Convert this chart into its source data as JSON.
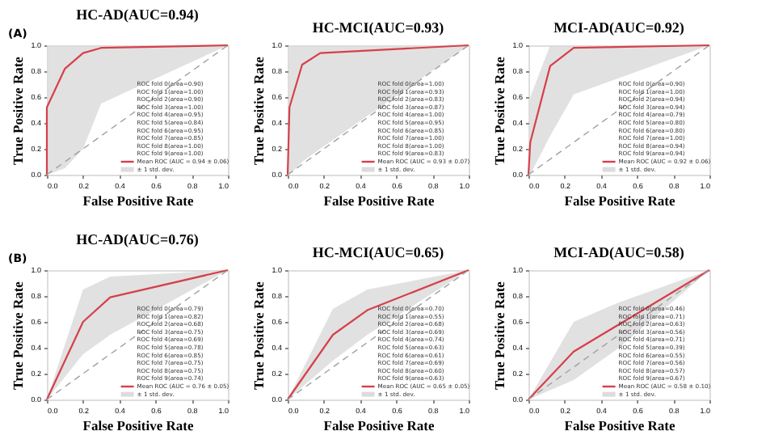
{
  "chart_data": [
    {
      "type": "line",
      "title": "HC-AD(AUC=0.94)",
      "xlabel": "False Positive Rate",
      "ylabel": "True Positive Rate",
      "xlim": [
        0,
        1
      ],
      "ylim": [
        0,
        1
      ],
      "xticks": [
        {
          "value": 0,
          "label": "0.0"
        },
        {
          "value": 0.2,
          "label": "0.2"
        },
        {
          "value": 0.4,
          "label": "0.4"
        },
        {
          "value": 0.6,
          "label": "0.6"
        },
        {
          "value": 0.8,
          "label": "0.8"
        },
        {
          "value": 1,
          "label": "1.0"
        }
      ],
      "yticks": [
        {
          "value": 0,
          "label": "0.0"
        },
        {
          "value": 0.2,
          "label": "0.2"
        },
        {
          "value": 0.4,
          "label": "0.4"
        },
        {
          "value": 0.6,
          "label": "0.6"
        },
        {
          "value": 0.8,
          "label": "0.8"
        },
        {
          "value": 1,
          "label": "1.0"
        }
      ],
      "series": [
        {
          "name": "Mean ROC (AUC = 0.94 ± 0.06)",
          "type": "line",
          "color": "#d6404a",
          "x": [
            0,
            0,
            0.1,
            0.2,
            0.3,
            1
          ],
          "values": [
            0,
            0.52,
            0.82,
            0.94,
            0.98,
            1
          ],
          "lower": [
            0,
            0,
            0.05,
            0.2,
            0.55,
            1
          ],
          "upper": [
            0,
            1,
            1,
            1,
            1,
            1
          ]
        },
        {
          "type": "line",
          "color": "#a0a0a0",
          "line_style": "dashed",
          "x": [
            0,
            1
          ],
          "values": [
            0,
            1
          ]
        }
      ],
      "annotations": [
        "(A)",
        "ROC fold 0(area=0.90)",
        "ROC fold 1(area=1.00)",
        "ROC fold 2(area=0.90)",
        "ROC fold 3(area=1.00)",
        "ROC fold 4(area=0.95)",
        "ROC fold 5(area=0.84)",
        "ROC fold 6(area=0.95)",
        "ROC fold 7(area=0.85)",
        "ROC fold 8(area=1.00)",
        "ROC fold 9(area=1.00)",
        "± 1 std. dev."
      ]
    },
    {
      "type": "line",
      "title": "HC-MCI(AUC=0.93)",
      "xlabel": "False Positive Rate",
      "ylabel": "True Positive Rate",
      "xlim": [
        0,
        1
      ],
      "ylim": [
        0,
        1
      ],
      "xticks": [
        {
          "value": 0,
          "label": "0.0"
        },
        {
          "value": 0.2,
          "label": "0.2"
        },
        {
          "value": 0.4,
          "label": "0.4"
        },
        {
          "value": 0.6,
          "label": "0.6"
        },
        {
          "value": 0.8,
          "label": "0.8"
        },
        {
          "value": 1,
          "label": "1.0"
        }
      ],
      "yticks": [
        {
          "value": 0,
          "label": "0.0"
        },
        {
          "value": 0.2,
          "label": "0.2"
        },
        {
          "value": 0.4,
          "label": "0.4"
        },
        {
          "value": 0.6,
          "label": "0.6"
        },
        {
          "value": 0.8,
          "label": "0.8"
        },
        {
          "value": 1,
          "label": "1.0"
        }
      ],
      "series": [
        {
          "name": "Mean ROC (AUC = 0.93 ± 0.07)",
          "type": "line",
          "color": "#d6404a",
          "x": [
            0,
            0.01,
            0.08,
            0.18,
            1
          ],
          "values": [
            0,
            0.52,
            0.85,
            0.94,
            1
          ],
          "lower": [
            0,
            0,
            0.1,
            0.2,
            1
          ],
          "upper": [
            0,
            1,
            1,
            1,
            1
          ]
        },
        {
          "type": "line",
          "color": "#a0a0a0",
          "line_style": "dashed",
          "x": [
            0,
            1
          ],
          "values": [
            0,
            1
          ]
        }
      ],
      "annotations": [
        "ROC fold 0(area=1.00)",
        "ROC fold 1(area=0.93)",
        "ROC fold 2(area=0.83)",
        "ROC fold 3(area=0.87)",
        "ROC fold 4(area=1.00)",
        "ROC fold 5(area=0.95)",
        "ROC fold 6(area=0.85)",
        "ROC fold 7(area=1.00)",
        "ROC fold 8(area=1.00)",
        "ROC fold 9(area=0.83)",
        "± 1 std. dev."
      ]
    },
    {
      "type": "line",
      "title": "MCI-AD(AUC=0.92)",
      "xlabel": "False Positive Rate",
      "ylabel": "True Positive Rate",
      "xlim": [
        0,
        1
      ],
      "ylim": [
        0,
        1
      ],
      "xticks": [
        {
          "value": 0,
          "label": "0.0"
        },
        {
          "value": 0.2,
          "label": "0.2"
        },
        {
          "value": 0.4,
          "label": "0.4"
        },
        {
          "value": 0.6,
          "label": "0.6"
        },
        {
          "value": 0.8,
          "label": "0.8"
        },
        {
          "value": 1,
          "label": "1.0"
        }
      ],
      "yticks": [
        {
          "value": 0,
          "label": "0.0"
        },
        {
          "value": 0.2,
          "label": "0.2"
        },
        {
          "value": 0.4,
          "label": "0.4"
        },
        {
          "value": 0.6,
          "label": "0.6"
        },
        {
          "value": 0.8,
          "label": "0.8"
        },
        {
          "value": 1,
          "label": "1.0"
        }
      ],
      "series": [
        {
          "name": "Mean ROC (AUC = 0.92 ± 0.06)",
          "type": "line",
          "color": "#d6404a",
          "x": [
            0,
            0.01,
            0.12,
            0.25,
            1
          ],
          "values": [
            0,
            0.25,
            0.84,
            0.98,
            1
          ],
          "lower": [
            0,
            0,
            0.3,
            0.62,
            1
          ],
          "upper": [
            0,
            0.6,
            1,
            1,
            1
          ]
        },
        {
          "type": "line",
          "color": "#a0a0a0",
          "line_style": "dashed",
          "x": [
            0,
            1
          ],
          "values": [
            0,
            1
          ]
        }
      ],
      "annotations": [
        "ROC fold 0(area=0.90)",
        "ROC fold 1(area=1.00)",
        "ROC fold 2(area=0.94)",
        "ROC fold 3(area=0.94)",
        "ROC fold 4(area=0.79)",
        "ROC fold 5(area=0.80)",
        "ROC fold 6(area=0.80)",
        "ROC fold 7(area=1.00)",
        "ROC fold 8(area=0.94)",
        "ROC fold 9(area=0.94)",
        "± 1 std. dev."
      ]
    },
    {
      "type": "line",
      "title": "HC-AD(AUC=0.76)",
      "xlabel": "False Positive Rate",
      "ylabel": "True Positive Rate",
      "xlim": [
        0,
        1
      ],
      "ylim": [
        0,
        1
      ],
      "xticks": [
        {
          "value": 0,
          "label": "0.0"
        },
        {
          "value": 0.2,
          "label": "0.2"
        },
        {
          "value": 0.4,
          "label": "0.4"
        },
        {
          "value": 0.6,
          "label": "0.6"
        },
        {
          "value": 0.8,
          "label": "0.8"
        },
        {
          "value": 1,
          "label": "1.0"
        }
      ],
      "yticks": [
        {
          "value": 0,
          "label": "0.0"
        },
        {
          "value": 0.2,
          "label": "0.2"
        },
        {
          "value": 0.4,
          "label": "0.4"
        },
        {
          "value": 0.6,
          "label": "0.6"
        },
        {
          "value": 0.8,
          "label": "0.8"
        },
        {
          "value": 1,
          "label": "1.0"
        }
      ],
      "series": [
        {
          "name": "Mean ROC (AUC = 0.76 ± 0.05)",
          "type": "line",
          "color": "#d6404a",
          "x": [
            0,
            0.2,
            0.35,
            1
          ],
          "values": [
            0,
            0.6,
            0.79,
            1
          ],
          "lower": [
            0,
            0.35,
            0.5,
            1
          ],
          "upper": [
            0,
            0.85,
            0.95,
            1
          ]
        },
        {
          "type": "line",
          "color": "#a0a0a0",
          "line_style": "dashed",
          "x": [
            0,
            1
          ],
          "values": [
            0,
            1
          ]
        }
      ],
      "annotations": [
        "(B)",
        "ROC fold 0(area=0.79)",
        "ROC fold 1(area=0.82)",
        "ROC fold 2(area=0.68)",
        "ROC fold 3(area=0.75)",
        "ROC fold 4(area=0.69)",
        "ROC fold 5(area=0.78)",
        "ROC fold 6(area=0.85)",
        "ROC fold 7(area=0.75)",
        "ROC fold 8(area=0.75)",
        "ROC fold 9(area=0.74)",
        "± 1 std. dev."
      ]
    },
    {
      "type": "line",
      "title": "HC-MCI(AUC=0.65)",
      "xlabel": "False Positive Rate",
      "ylabel": "True Positive Rate",
      "xlim": [
        0,
        1
      ],
      "ylim": [
        0,
        1
      ],
      "xticks": [
        {
          "value": 0,
          "label": "0.0"
        },
        {
          "value": 0.2,
          "label": "0.2"
        },
        {
          "value": 0.4,
          "label": "0.4"
        },
        {
          "value": 0.6,
          "label": "0.6"
        },
        {
          "value": 0.8,
          "label": "0.8"
        },
        {
          "value": 1,
          "label": "1.0"
        }
      ],
      "yticks": [
        {
          "value": 0,
          "label": "0.0"
        },
        {
          "value": 0.2,
          "label": "0.2"
        },
        {
          "value": 0.4,
          "label": "0.4"
        },
        {
          "value": 0.6,
          "label": "0.6"
        },
        {
          "value": 0.8,
          "label": "0.8"
        },
        {
          "value": 1,
          "label": "1.0"
        }
      ],
      "series": [
        {
          "name": "Mean ROC (AUC = 0.65 ± 0.05)",
          "type": "line",
          "color": "#d6404a",
          "x": [
            0,
            0.25,
            0.44,
            1
          ],
          "values": [
            0,
            0.5,
            0.69,
            1
          ],
          "lower": [
            0,
            0.3,
            0.5,
            1
          ],
          "upper": [
            0,
            0.7,
            0.85,
            1
          ]
        },
        {
          "type": "line",
          "color": "#a0a0a0",
          "line_style": "dashed",
          "x": [
            0,
            1
          ],
          "values": [
            0,
            1
          ]
        }
      ],
      "annotations": [
        "ROC fold 0(area=0.70)",
        "ROC fold 1(area=0.55)",
        "ROC fold 2(area=0.68)",
        "ROC fold 3(area=0.69)",
        "ROC fold 4(area=0.74)",
        "ROC fold 5(area=0.63)",
        "ROC fold 6(area=0.61)",
        "ROC fold 7(area=0.69)",
        "ROC fold 8(area=0.60)",
        "ROC fold 9(area=0.63)",
        "± 1 std. dev."
      ]
    },
    {
      "type": "line",
      "title": "MCI-AD(AUC=0.58)",
      "xlabel": "False Positive Rate",
      "ylabel": "True Positive Rate",
      "xlim": [
        0,
        1
      ],
      "ylim": [
        0,
        1
      ],
      "xticks": [
        {
          "value": 0,
          "label": "0.0"
        },
        {
          "value": 0.2,
          "label": "0.2"
        },
        {
          "value": 0.4,
          "label": "0.4"
        },
        {
          "value": 0.6,
          "label": "0.6"
        },
        {
          "value": 0.8,
          "label": "0.8"
        },
        {
          "value": 1,
          "label": "1.0"
        }
      ],
      "yticks": [
        {
          "value": 0,
          "label": "0.0"
        },
        {
          "value": 0.2,
          "label": "0.2"
        },
        {
          "value": 0.4,
          "label": "0.4"
        },
        {
          "value": 0.6,
          "label": "0.6"
        },
        {
          "value": 0.8,
          "label": "0.8"
        },
        {
          "value": 1,
          "label": "1.0"
        }
      ],
      "series": [
        {
          "name": "Mean ROC (AUC = 0.58 ± 0.10)",
          "type": "line",
          "color": "#d6404a",
          "x": [
            0,
            0.25,
            0.5,
            1
          ],
          "values": [
            0,
            0.37,
            0.58,
            1
          ],
          "lower": [
            0,
            0.15,
            0.4,
            1
          ],
          "upper": [
            0,
            0.6,
            0.75,
            1
          ]
        },
        {
          "type": "line",
          "color": "#a0a0a0",
          "line_style": "dashed",
          "x": [
            0,
            1
          ],
          "values": [
            0,
            1
          ]
        }
      ],
      "annotations": [
        "ROC fold 0(area=0.46)",
        "ROC fold 1(area=0.71)",
        "ROC fold 2(area=0.63)",
        "ROC fold 3(area=0.56)",
        "ROC fold 4(area=0.71)",
        "ROC fold 5(area=0.39)",
        "ROC fold 6(area=0.55)",
        "ROC fold 7(area=0.56)",
        "ROC fold 8(area=0.57)",
        "ROC fold 9(area=0.67)",
        "± 1 std. dev."
      ]
    }
  ]
}
